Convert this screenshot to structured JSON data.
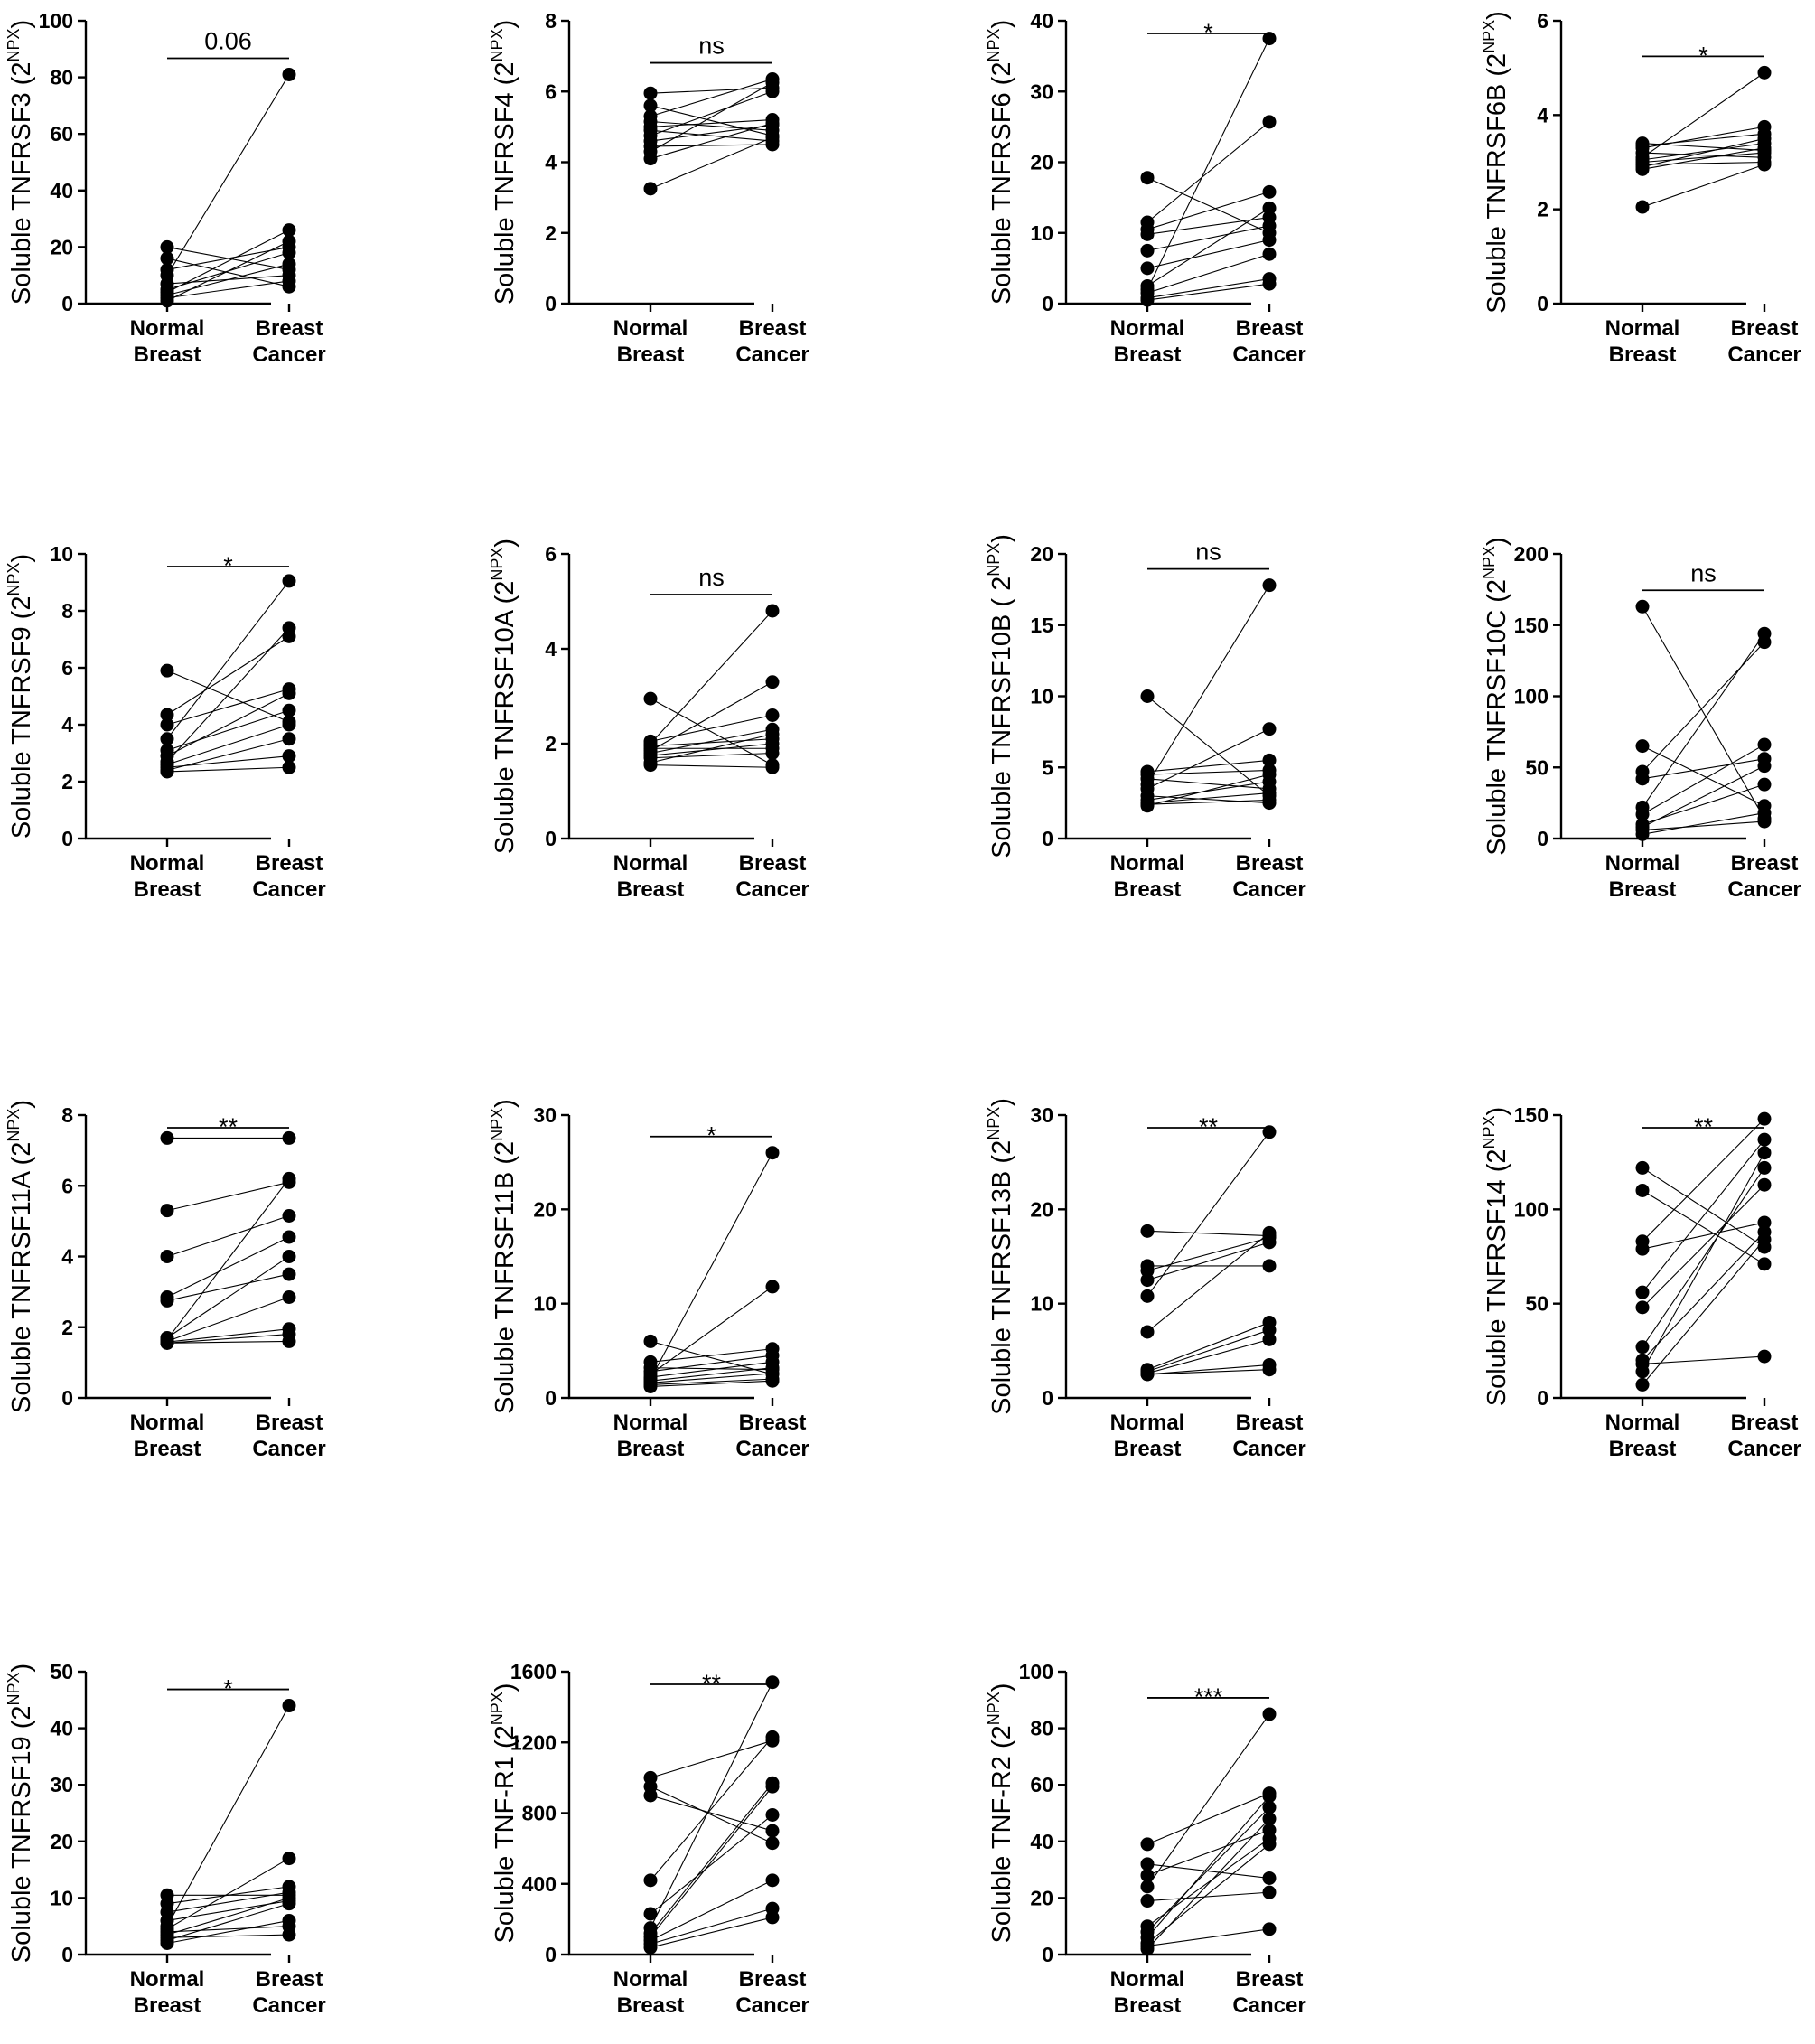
{
  "chart_data": [
    {
      "type": "scatter",
      "paired": true,
      "categories": [
        "Normal\nBreast",
        "Breast\nCancer"
      ],
      "ylabel": "Soluble TNFRSF3 (2^NPX)",
      "ylabel_main": "Soluble TNFRSF3 (2",
      "ylabel_sup": "NPX",
      "ylabel_tail": ")",
      "ylim": [
        0,
        100
      ],
      "yticks": [
        "0",
        "20",
        "40",
        "60",
        "80",
        "100"
      ],
      "significance": "0.06",
      "pairs": [
        [
          20,
          12
        ],
        [
          16,
          6
        ],
        [
          12,
          20
        ],
        [
          10,
          81
        ],
        [
          7,
          10
        ],
        [
          5,
          18
        ],
        [
          4,
          26
        ],
        [
          3,
          14
        ],
        [
          2,
          8
        ],
        [
          1,
          22
        ]
      ]
    },
    {
      "type": "scatter",
      "paired": true,
      "categories": [
        "Normal\nBreast",
        "Breast\nCancer"
      ],
      "ylabel": "Soluble TNFRSF4 (2^NPX)",
      "ylabel_main": "Soluble TNFRSF4 (2",
      "ylabel_sup": "NPX",
      "ylabel_tail": ")",
      "ylim": [
        0,
        8
      ],
      "yticks": [
        "0",
        "2",
        "4",
        "6",
        "8"
      ],
      "significance": "ns",
      "pairs": [
        [
          5.95,
          6.1
        ],
        [
          5.6,
          4.75
        ],
        [
          5.3,
          6.35
        ],
        [
          5.15,
          4.9
        ],
        [
          5.0,
          5.2
        ],
        [
          4.9,
          4.6
        ],
        [
          4.75,
          6.0
        ],
        [
          4.6,
          5.05
        ],
        [
          4.45,
          4.5
        ],
        [
          4.3,
          6.25
        ],
        [
          4.1,
          5.1
        ],
        [
          3.25,
          4.7
        ]
      ]
    },
    {
      "type": "scatter",
      "paired": true,
      "categories": [
        "Normal\nBreast",
        "Breast\nCancer"
      ],
      "ylabel": "Soluble TNFRSF6 (2^NPX)",
      "ylabel_main": "Soluble TNFRSF6 (2",
      "ylabel_sup": "NPX",
      "ylabel_tail": ")",
      "ylim": [
        0,
        40
      ],
      "yticks": [
        "0",
        "10",
        "20",
        "30",
        "40"
      ],
      "significance": "*",
      "pairs": [
        [
          17.8,
          10.0
        ],
        [
          11.5,
          25.7
        ],
        [
          10.5,
          15.8
        ],
        [
          9.8,
          12.2
        ],
        [
          7.5,
          11.0
        ],
        [
          5.0,
          9.0
        ],
        [
          2.5,
          13.5
        ],
        [
          2.0,
          37.5
        ],
        [
          1.5,
          7.0
        ],
        [
          0.8,
          3.5
        ],
        [
          0.5,
          2.8
        ]
      ]
    },
    {
      "type": "scatter",
      "paired": true,
      "categories": [
        "Normal\nBreast",
        "Breast\nCancer"
      ],
      "ylabel": "Soluble TNFRSF6B (2^NPX)",
      "ylabel_main": "Soluble TNFRSF6B (2",
      "ylabel_sup": "NPX",
      "ylabel_tail": ")",
      "ylim": [
        0,
        6
      ],
      "yticks": [
        "0",
        "2",
        "4",
        "6"
      ],
      "significance": "*",
      "pairs": [
        [
          3.4,
          3.25
        ],
        [
          3.35,
          3.6
        ],
        [
          3.3,
          3.75
        ],
        [
          3.2,
          3.1
        ],
        [
          3.1,
          4.9
        ],
        [
          3.05,
          3.4
        ],
        [
          3.0,
          3.2
        ],
        [
          2.95,
          3.0
        ],
        [
          2.9,
          3.5
        ],
        [
          2.85,
          3.3
        ],
        [
          2.05,
          2.95
        ]
      ]
    },
    {
      "type": "scatter",
      "paired": true,
      "categories": [
        "Normal\nBreast",
        "Breast\nCancer"
      ],
      "ylabel": "Soluble TNFRSF9 (2^NPX)",
      "ylabel_main": "Soluble TNFRSF9 (2",
      "ylabel_sup": "NPX",
      "ylabel_tail": ")",
      "ylim": [
        0,
        10
      ],
      "yticks": [
        "0",
        "2",
        "4",
        "6",
        "8",
        "10"
      ],
      "significance": "*",
      "pairs": [
        [
          5.9,
          4.1
        ],
        [
          4.35,
          7.1
        ],
        [
          4.0,
          5.25
        ],
        [
          3.5,
          9.05
        ],
        [
          3.1,
          4.5
        ],
        [
          2.9,
          5.1
        ],
        [
          2.7,
          7.4
        ],
        [
          2.6,
          4.0
        ],
        [
          2.5,
          2.9
        ],
        [
          2.4,
          3.5
        ],
        [
          2.35,
          2.5
        ]
      ]
    },
    {
      "type": "scatter",
      "paired": true,
      "categories": [
        "Normal\nBreast",
        "Breast\nCancer"
      ],
      "ylabel": "Soluble TNFRSF10A (2^NPX)",
      "ylabel_main": "Soluble TNFRSF10A (2",
      "ylabel_sup": "NPX",
      "ylabel_tail": ")",
      "ylim": [
        0,
        6
      ],
      "yticks": [
        "0",
        "2",
        "4",
        "6"
      ],
      "significance": "ns",
      "pairs": [
        [
          2.95,
          1.55
        ],
        [
          2.05,
          2.6
        ],
        [
          2.0,
          4.8
        ],
        [
          1.95,
          2.1
        ],
        [
          1.9,
          1.9
        ],
        [
          1.85,
          3.3
        ],
        [
          1.8,
          2.3
        ],
        [
          1.75,
          2.0
        ],
        [
          1.7,
          1.8
        ],
        [
          1.6,
          2.2
        ],
        [
          1.55,
          1.5
        ]
      ]
    },
    {
      "type": "scatter",
      "paired": true,
      "categories": [
        "Normal\nBreast",
        "Breast\nCancer"
      ],
      "ylabel": "Soluble TNFRSF10B ( 2^NPX)",
      "ylabel_main": "Soluble TNFRSF10B ( 2",
      "ylabel_sup": "NPX",
      "ylabel_tail": ")",
      "ylim": [
        0,
        20
      ],
      "yticks": [
        "0",
        "5",
        "10",
        "15",
        "20"
      ],
      "significance": "ns",
      "pairs": [
        [
          10.0,
          3.0
        ],
        [
          4.7,
          5.5
        ],
        [
          4.5,
          4.8
        ],
        [
          4.2,
          3.5
        ],
        [
          3.8,
          17.8
        ],
        [
          3.5,
          7.7
        ],
        [
          3.0,
          2.5
        ],
        [
          2.7,
          4.0
        ],
        [
          2.5,
          3.2
        ],
        [
          2.4,
          2.7
        ],
        [
          2.3,
          4.5
        ]
      ]
    },
    {
      "type": "scatter",
      "paired": true,
      "categories": [
        "Normal\nBreast",
        "Breast\nCancer"
      ],
      "ylabel": "Soluble TNFRSF10C (2^NPX)",
      "ylabel_main": "Soluble TNFRSF10C (2",
      "ylabel_sup": "NPX",
      "ylabel_tail": ")",
      "ylim": [
        0,
        200
      ],
      "yticks": [
        "0",
        "50",
        "100",
        "150",
        "200"
      ],
      "significance": "ns",
      "pairs": [
        [
          163,
          14
        ],
        [
          65,
          23
        ],
        [
          47,
          138
        ],
        [
          42,
          56
        ],
        [
          22,
          144
        ],
        [
          17,
          66
        ],
        [
          10,
          38
        ],
        [
          8,
          51
        ],
        [
          6,
          12
        ],
        [
          3,
          18
        ]
      ]
    },
    {
      "type": "scatter",
      "paired": true,
      "categories": [
        "Normal\nBreast",
        "Breast\nCancer"
      ],
      "ylabel": "Soluble TNFRSF11A (2^NPX)",
      "ylabel_main": "Soluble TNFRSF11A (2",
      "ylabel_sup": "NPX",
      "ylabel_tail": ")",
      "ylim": [
        0,
        8
      ],
      "yticks": [
        "0",
        "2",
        "4",
        "6",
        "8"
      ],
      "significance": "**",
      "pairs": [
        [
          7.35,
          7.35
        ],
        [
          5.3,
          6.1
        ],
        [
          4.0,
          5.15
        ],
        [
          2.85,
          4.55
        ],
        [
          2.75,
          3.5
        ],
        [
          1.7,
          4.0
        ],
        [
          1.65,
          6.2
        ],
        [
          1.6,
          2.85
        ],
        [
          1.58,
          1.95
        ],
        [
          1.55,
          1.6
        ],
        [
          1.55,
          1.8
        ]
      ]
    },
    {
      "type": "scatter",
      "paired": true,
      "categories": [
        "Normal\nBreast",
        "Breast\nCancer"
      ],
      "ylabel": "Soluble TNFRSF11B (2^NPX)",
      "ylabel_main": "Soluble TNFRSF11B (2",
      "ylabel_sup": "NPX",
      "ylabel_tail": ")",
      "ylim": [
        0,
        30
      ],
      "yticks": [
        "0",
        "10",
        "20",
        "30"
      ],
      "significance": "*",
      "pairs": [
        [
          6.0,
          2.5
        ],
        [
          3.8,
          5.2
        ],
        [
          3.2,
          3.0
        ],
        [
          2.8,
          4.5
        ],
        [
          2.5,
          11.8
        ],
        [
          2.2,
          3.8
        ],
        [
          2.0,
          26.0
        ],
        [
          1.8,
          3.2
        ],
        [
          1.6,
          2.6
        ],
        [
          1.4,
          2.0
        ],
        [
          1.2,
          1.8
        ]
      ]
    },
    {
      "type": "scatter",
      "paired": true,
      "categories": [
        "Normal\nBreast",
        "Breast\nCancer"
      ],
      "ylabel": "Soluble TNFRSF13B (2^NPX)",
      "ylabel_main": "Soluble TNFRSF13B (2",
      "ylabel_sup": "NPX",
      "ylabel_tail": ")",
      "ylim": [
        0,
        30
      ],
      "yticks": [
        "0",
        "10",
        "20",
        "30"
      ],
      "significance": "**",
      "pairs": [
        [
          17.7,
          17.2
        ],
        [
          14.0,
          14.0
        ],
        [
          13.5,
          17.0
        ],
        [
          12.5,
          16.5
        ],
        [
          10.8,
          28.2
        ],
        [
          7.0,
          17.5
        ],
        [
          3.0,
          8.0
        ],
        [
          2.8,
          7.2
        ],
        [
          2.6,
          6.2
        ],
        [
          2.5,
          3.5
        ],
        [
          2.5,
          3.0
        ]
      ]
    },
    {
      "type": "scatter",
      "paired": true,
      "categories": [
        "Normal\nBreast",
        "Breast\nCancer"
      ],
      "ylabel": "Soluble TNFRSF14 (2^NPX)",
      "ylabel_main": "Soluble TNFRSF14 (2",
      "ylabel_sup": "NPX",
      "ylabel_tail": ")",
      "ylim": [
        0,
        150
      ],
      "yticks": [
        "0",
        "50",
        "100",
        "150"
      ],
      "significance": "**",
      "pairs": [
        [
          122,
          80
        ],
        [
          110,
          71
        ],
        [
          83,
          148
        ],
        [
          79,
          93
        ],
        [
          56,
          137
        ],
        [
          48,
          113
        ],
        [
          27,
          122
        ],
        [
          20,
          88
        ],
        [
          14,
          130
        ],
        [
          7,
          84
        ],
        [
          18,
          22
        ]
      ]
    },
    {
      "type": "scatter",
      "paired": true,
      "categories": [
        "Normal\nBreast",
        "Breast\nCancer"
      ],
      "ylabel": "Soluble TNFRSF19 (2^NPX)",
      "ylabel_main": "Soluble TNFRSF19 (2",
      "ylabel_sup": "NPX",
      "ylabel_tail": ")",
      "ylim": [
        0,
        50
      ],
      "yticks": [
        "0",
        "10",
        "20",
        "30",
        "40",
        "50"
      ],
      "significance": "*",
      "pairs": [
        [
          10.5,
          10.5
        ],
        [
          9.0,
          12.0
        ],
        [
          7.5,
          11.0
        ],
        [
          6.0,
          9.5
        ],
        [
          5.0,
          44.0
        ],
        [
          4.5,
          17.0
        ],
        [
          4.0,
          5.0
        ],
        [
          3.5,
          10.0
        ],
        [
          3.0,
          3.5
        ],
        [
          2.5,
          9.0
        ],
        [
          2.0,
          6.0
        ]
      ]
    },
    {
      "type": "scatter",
      "paired": true,
      "categories": [
        "Normal\nBreast",
        "Breast\nCancer"
      ],
      "ylabel": "Soluble TNF-R1 (2^NPX)",
      "ylabel_main": "Soluble TNF-R1 (2",
      "ylabel_sup": "NPX",
      "ylabel_tail": ")",
      "ylim": [
        0,
        1600
      ],
      "yticks": [
        "0",
        "400",
        "800",
        "1200",
        "1600"
      ],
      "significance": "**",
      "pairs": [
        [
          1000,
          1210
        ],
        [
          950,
          630
        ],
        [
          900,
          700
        ],
        [
          420,
          1230
        ],
        [
          230,
          790
        ],
        [
          150,
          1540
        ],
        [
          120,
          970
        ],
        [
          100,
          950
        ],
        [
          80,
          420
        ],
        [
          60,
          260
        ],
        [
          40,
          210
        ]
      ]
    },
    {
      "type": "scatter",
      "paired": true,
      "categories": [
        "Normal\nBreast",
        "Breast\nCancer"
      ],
      "ylabel": "Soluble TNF-R2 (2^NPX)",
      "ylabel_main": "Soluble TNF-R2 (2",
      "ylabel_sup": "NPX",
      "ylabel_tail": ")",
      "ylim": [
        0,
        100
      ],
      "yticks": [
        "0",
        "20",
        "40",
        "60",
        "80",
        "100"
      ],
      "significance": "***",
      "pairs": [
        [
          39,
          57
        ],
        [
          32,
          27
        ],
        [
          28,
          44
        ],
        [
          24,
          85
        ],
        [
          19,
          22
        ],
        [
          10,
          41
        ],
        [
          8,
          52
        ],
        [
          6,
          56
        ],
        [
          4,
          39
        ],
        [
          3,
          9
        ],
        [
          2,
          48
        ]
      ]
    }
  ]
}
